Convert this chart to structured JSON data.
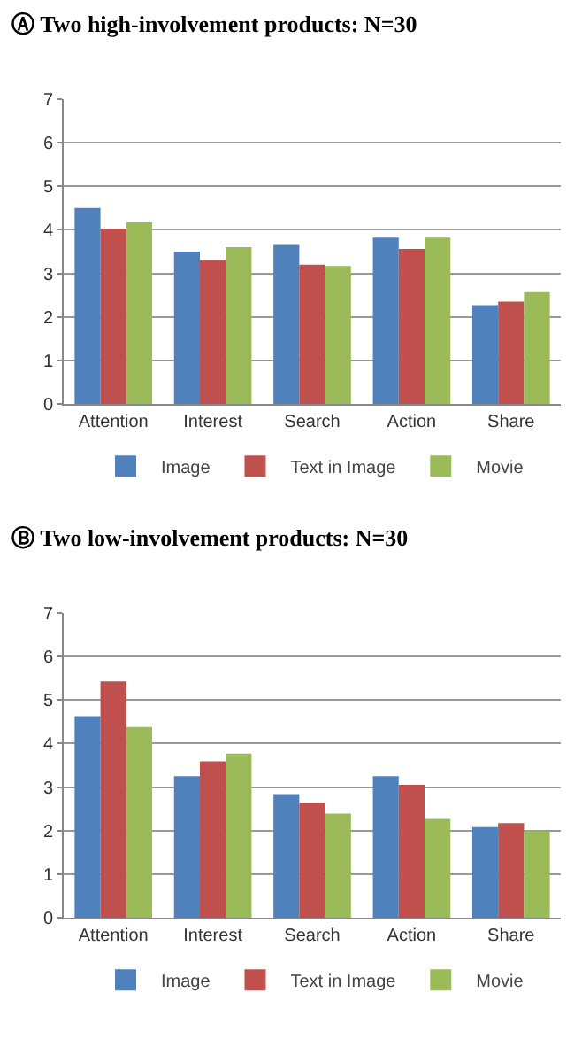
{
  "chart_data": [
    {
      "type": "bar",
      "title": "Ⓐ Two high-involvement products: N=30",
      "categories": [
        "Attention",
        "Interest",
        "Search",
        "Action",
        "Share"
      ],
      "series": [
        {
          "name": "Image",
          "color": "#4f81bd",
          "values": [
            4.5,
            3.5,
            3.65,
            3.82,
            2.27
          ]
        },
        {
          "name": "Text in Image",
          "color": "#c0504d",
          "values": [
            4.03,
            3.3,
            3.2,
            3.56,
            2.35
          ]
        },
        {
          "name": "Movie",
          "color": "#9bbb59",
          "values": [
            4.17,
            3.6,
            3.17,
            3.82,
            2.57
          ]
        }
      ],
      "ylim": [
        0,
        7
      ],
      "yticks": [
        0,
        1,
        2,
        3,
        4,
        5,
        6,
        7
      ],
      "grid": "y",
      "legend": "bottom"
    },
    {
      "type": "bar",
      "title": "Ⓑ Two low-involvement products: N=30",
      "categories": [
        "Attention",
        "Interest",
        "Search",
        "Action",
        "Share"
      ],
      "series": [
        {
          "name": "Image",
          "color": "#4f81bd",
          "values": [
            4.63,
            3.25,
            2.84,
            3.25,
            2.08
          ]
        },
        {
          "name": "Text in Image",
          "color": "#c0504d",
          "values": [
            5.43,
            3.59,
            2.64,
            3.05,
            2.17
          ]
        },
        {
          "name": "Movie",
          "color": "#9bbb59",
          "values": [
            4.38,
            3.77,
            2.39,
            2.27,
            1.99
          ]
        }
      ],
      "ylim": [
        0,
        7
      ],
      "yticks": [
        0,
        1,
        2,
        3,
        4,
        5,
        6,
        7
      ],
      "grid": "y",
      "legend": "bottom"
    }
  ]
}
